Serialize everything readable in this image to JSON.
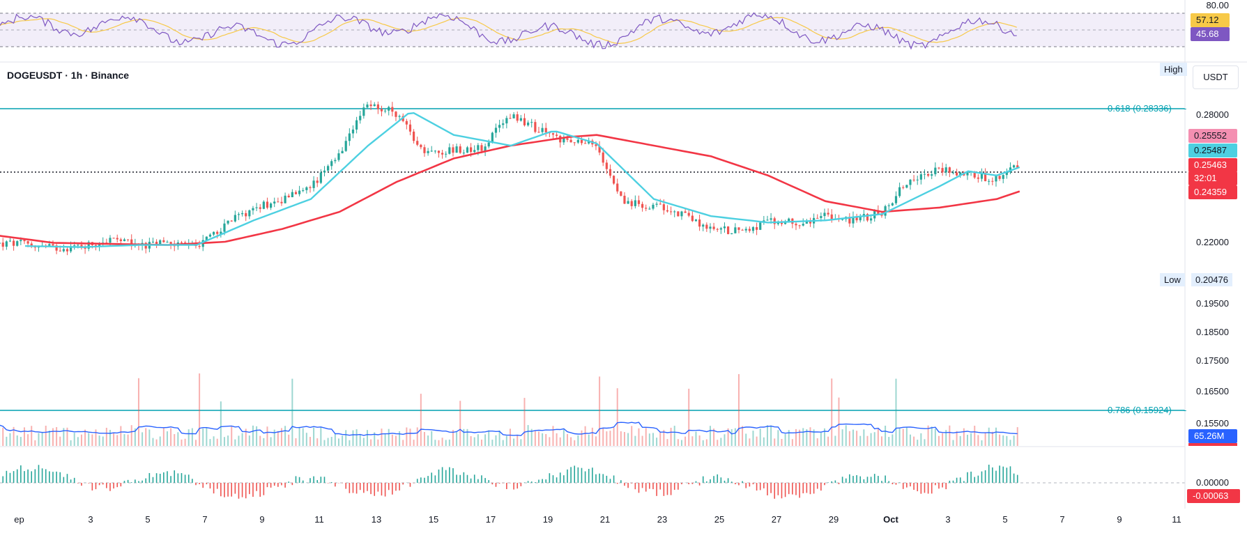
{
  "symbol_title": "DOGEUSDT · 1h · Binance",
  "unit_button": "USDT",
  "high_tag": "High",
  "low_tag": "Low",
  "low_value": "0.20476",
  "fib": [
    {
      "label": "0.618 (0.28336)",
      "level": 0.28336
    },
    {
      "label": "0.786 (0.15924)",
      "level": 0.15924
    }
  ],
  "price_axis_labels": [
    "0.28000",
    "0.22000",
    "0.19500",
    "0.18500",
    "0.17500",
    "0.16500",
    "0.15500"
  ],
  "badges": {
    "red_upper": "0.25552",
    "cyan": "0.25487",
    "last_price": "0.25463",
    "countdown": "32:01",
    "ma_long": "0.24359",
    "volume": "65.26M",
    "rsi_upper": "57.12",
    "rsi_lower": "45.68",
    "rsi_top_tick": "80.00",
    "oscillator_zero": "0.00000",
    "oscillator_value": "-0.00063"
  },
  "date_labels": [
    "ep",
    "3",
    "5",
    "7",
    "9",
    "11",
    "13",
    "15",
    "17",
    "19",
    "21",
    "23",
    "25",
    "27",
    "29",
    "Oct",
    "3",
    "5",
    "7",
    "9",
    "11"
  ],
  "colors": {
    "up": "#26a69a",
    "down": "#ef5350",
    "ma_fast": "#4dd0e1",
    "ma_slow": "#f23645",
    "fib": "#00a0b0",
    "rsi_line": "#7e57c2",
    "rsi_ma": "#f7c948",
    "volume_ma": "#2962ff"
  },
  "chart_data": {
    "type": "candlestick",
    "symbol": "DOGEUSDT",
    "interval": "1h",
    "exchange": "Binance",
    "ylim": [
      0.15,
      0.29
    ],
    "close_path": [
      {
        "day": 1.0,
        "close": 0.219
      },
      {
        "day": 2.0,
        "close": 0.217
      },
      {
        "day": 3.0,
        "close": 0.218
      },
      {
        "day": 4.0,
        "close": 0.221
      },
      {
        "day": 5.0,
        "close": 0.218
      },
      {
        "day": 6.0,
        "close": 0.2195
      },
      {
        "day": 7.0,
        "close": 0.218
      },
      {
        "day": 8.0,
        "close": 0.228
      },
      {
        "day": 9.0,
        "close": 0.236
      },
      {
        "day": 10.0,
        "close": 0.24
      },
      {
        "day": 11.0,
        "close": 0.246
      },
      {
        "day": 12.0,
        "close": 0.26
      },
      {
        "day": 13.0,
        "close": 0.285
      },
      {
        "day": 14.0,
        "close": 0.28
      },
      {
        "day": 15.0,
        "close": 0.262
      },
      {
        "day": 16.0,
        "close": 0.263
      },
      {
        "day": 17.0,
        "close": 0.264
      },
      {
        "day": 18.0,
        "close": 0.28
      },
      {
        "day": 19.0,
        "close": 0.272
      },
      {
        "day": 20.0,
        "close": 0.267
      },
      {
        "day": 21.0,
        "close": 0.265
      },
      {
        "day": 22.0,
        "close": 0.238
      },
      {
        "day": 23.0,
        "close": 0.237
      },
      {
        "day": 24.0,
        "close": 0.233
      },
      {
        "day": 25.0,
        "close": 0.226
      },
      {
        "day": 26.0,
        "close": 0.225
      },
      {
        "day": 27.0,
        "close": 0.229
      },
      {
        "day": 28.0,
        "close": 0.229
      },
      {
        "day": 29.0,
        "close": 0.232
      },
      {
        "day": 30.0,
        "close": 0.23
      },
      {
        "day": 31.0,
        "close": 0.234
      },
      {
        "day": 32.0,
        "close": 0.25
      },
      {
        "day": 33.0,
        "close": 0.254
      },
      {
        "day": 34.0,
        "close": 0.252
      },
      {
        "day": 35.0,
        "close": 0.249
      },
      {
        "day": 35.5,
        "close": 0.256
      },
      {
        "day": 35.8,
        "close": 0.2546
      }
    ],
    "ma_fast_path": [
      {
        "day": 1.0,
        "value": 0.218
      },
      {
        "day": 3.0,
        "value": 0.2175
      },
      {
        "day": 5.0,
        "value": 0.2185
      },
      {
        "day": 7.0,
        "value": 0.2185
      },
      {
        "day": 9.0,
        "value": 0.23
      },
      {
        "day": 11.0,
        "value": 0.24
      },
      {
        "day": 13.0,
        "value": 0.265
      },
      {
        "day": 14.5,
        "value": 0.281
      },
      {
        "day": 16.0,
        "value": 0.27
      },
      {
        "day": 18.0,
        "value": 0.265
      },
      {
        "day": 19.5,
        "value": 0.272
      },
      {
        "day": 21.0,
        "value": 0.266
      },
      {
        "day": 23.0,
        "value": 0.24
      },
      {
        "day": 25.0,
        "value": 0.232
      },
      {
        "day": 27.0,
        "value": 0.229
      },
      {
        "day": 29.0,
        "value": 0.23
      },
      {
        "day": 31.0,
        "value": 0.233
      },
      {
        "day": 33.0,
        "value": 0.246
      },
      {
        "day": 34.0,
        "value": 0.253
      },
      {
        "day": 35.0,
        "value": 0.251
      },
      {
        "day": 35.8,
        "value": 0.2549
      }
    ],
    "ma_slow_path": [
      {
        "day": 0.0,
        "value": 0.223
      },
      {
        "day": 2.0,
        "value": 0.2195
      },
      {
        "day": 4.0,
        "value": 0.219
      },
      {
        "day": 6.0,
        "value": 0.2185
      },
      {
        "day": 8.0,
        "value": 0.22
      },
      {
        "day": 10.0,
        "value": 0.226
      },
      {
        "day": 12.0,
        "value": 0.234
      },
      {
        "day": 14.0,
        "value": 0.248
      },
      {
        "day": 16.0,
        "value": 0.259
      },
      {
        "day": 18.0,
        "value": 0.265
      },
      {
        "day": 20.0,
        "value": 0.269
      },
      {
        "day": 21.0,
        "value": 0.27
      },
      {
        "day": 23.0,
        "value": 0.265
      },
      {
        "day": 25.0,
        "value": 0.26
      },
      {
        "day": 27.0,
        "value": 0.251
      },
      {
        "day": 29.0,
        "value": 0.239
      },
      {
        "day": 31.0,
        "value": 0.234
      },
      {
        "day": 33.0,
        "value": 0.236
      },
      {
        "day": 35.0,
        "value": 0.24
      },
      {
        "day": 35.8,
        "value": 0.2436
      }
    ],
    "series": [
      {
        "name": "last_price",
        "value": 0.25463
      },
      {
        "name": "high",
        "value": 0.29
      },
      {
        "name": "low",
        "value": 0.20476
      }
    ],
    "volume_last": "65.26M",
    "rsi": {
      "value": 45.68,
      "ma": 57.12,
      "upper_band": 70,
      "lower_band": 30,
      "top_tick": 80
    },
    "oscillator_last": -0.00063
  }
}
